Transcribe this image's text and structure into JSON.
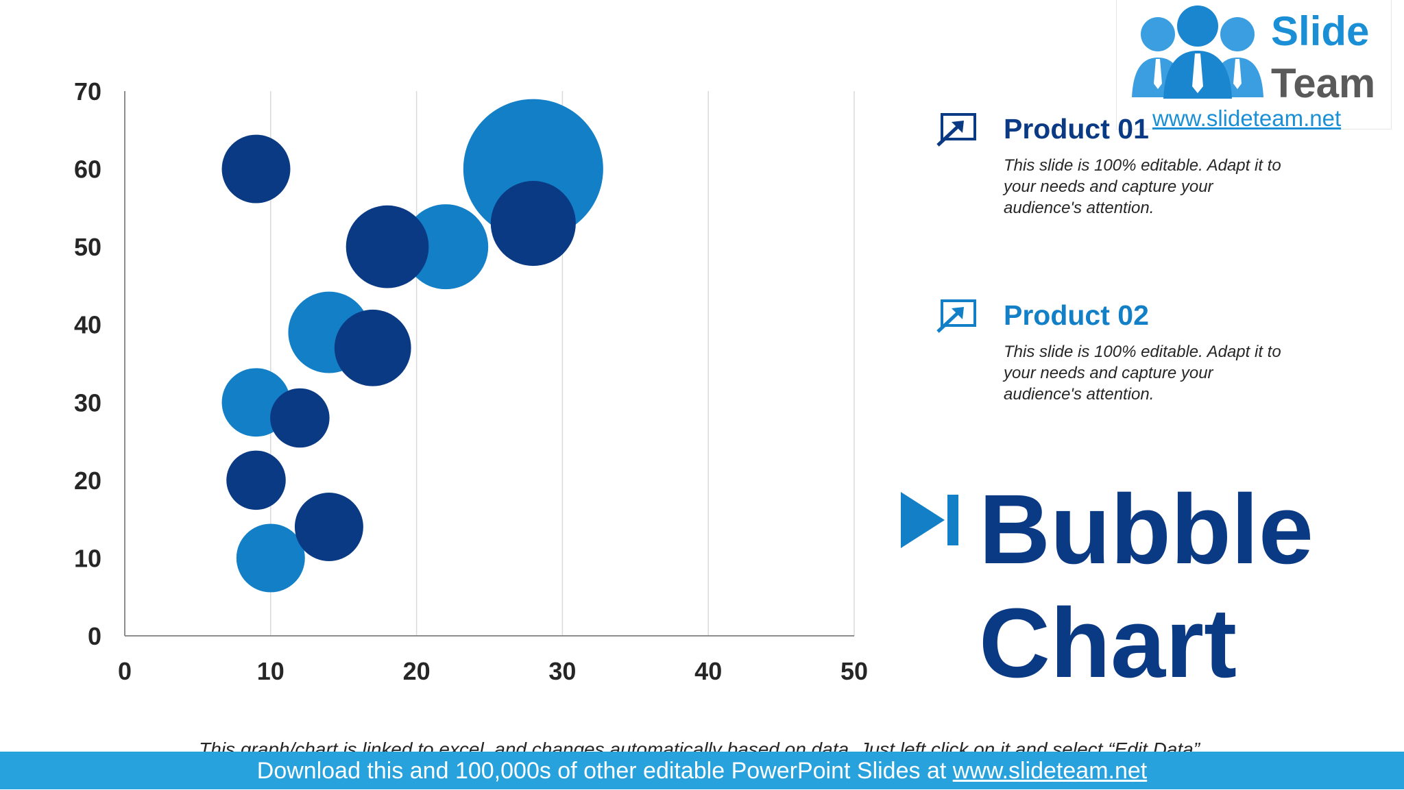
{
  "colors": {
    "product01": "#0b3a84",
    "product02": "#127fc7",
    "footer_bg": "#27a2dc"
  },
  "logo": {
    "word1": "Slide",
    "word2": "Team",
    "url": "www.slideteam.net"
  },
  "legend": [
    {
      "name": "Product 01",
      "icon": "expand-arrow-icon",
      "desc": "This slide is 100% editable. Adapt it to your needs and capture your audience's attention."
    },
    {
      "name": "Product 02",
      "icon": "expand-arrow-icon",
      "desc": "This slide is 100% editable. Adapt it to your needs and capture your audience's attention."
    }
  ],
  "headline": {
    "line1": "Bubble",
    "line2": "Chart",
    "icon": "play-next-icon"
  },
  "footnote": "This graph/chart is linked to excel, and changes automatically based on data.  Just left click on it and select “Edit Data”.",
  "footer": {
    "text": "Download this and 100,000s of other editable PowerPoint Slides at ",
    "link": "www.slideteam.net"
  },
  "chart_data": {
    "type": "scatter",
    "subtype": "bubble",
    "xlim": [
      0,
      50
    ],
    "ylim": [
      0,
      70
    ],
    "x_ticks": [
      0,
      10,
      20,
      30,
      40,
      50
    ],
    "y_ticks": [
      0,
      10,
      20,
      30,
      40,
      50,
      60,
      70
    ],
    "grid": {
      "vertical": true,
      "horizontal": false
    },
    "series": [
      {
        "name": "Product 02",
        "color": "#127fc7",
        "points": [
          {
            "x": 28,
            "y": 60,
            "size": 100
          },
          {
            "x": 22,
            "y": 50,
            "size": 37
          },
          {
            "x": 14,
            "y": 39,
            "size": 34
          },
          {
            "x": 9,
            "y": 30,
            "size": 24
          },
          {
            "x": 10,
            "y": 10,
            "size": 24
          }
        ]
      },
      {
        "name": "Product 01",
        "color": "#0b3a84",
        "points": [
          {
            "x": 9,
            "y": 60,
            "size": 24
          },
          {
            "x": 18,
            "y": 50,
            "size": 35
          },
          {
            "x": 28,
            "y": 53,
            "size": 37
          },
          {
            "x": 17,
            "y": 37,
            "size": 30
          },
          {
            "x": 12,
            "y": 28,
            "size": 18
          },
          {
            "x": 9,
            "y": 20,
            "size": 18
          },
          {
            "x": 14,
            "y": 14,
            "size": 24
          }
        ]
      }
    ]
  }
}
